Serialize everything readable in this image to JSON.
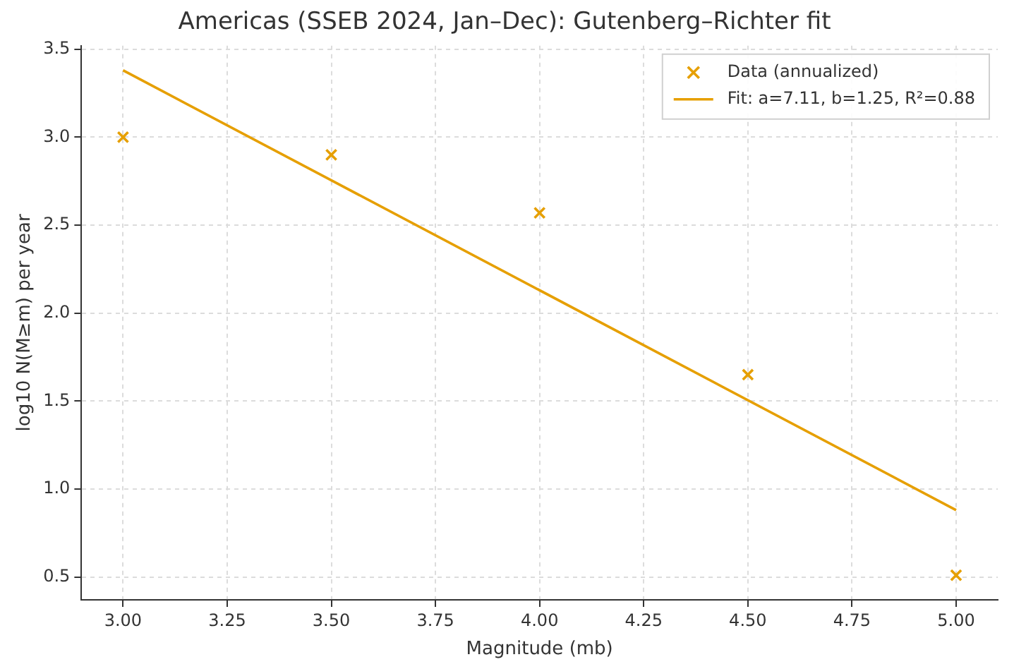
{
  "chart_data": {
    "type": "scatter",
    "title": "Americas (SSEB 2024, Jan–Dec): Gutenberg–Richter fit",
    "xlabel": "Magnitude (mb)",
    "ylabel": "log10 N(M≥m) per year",
    "x": [
      3.0,
      3.5,
      4.0,
      4.5,
      5.0
    ],
    "series": [
      {
        "name": "Data (annualized)",
        "color": "#e69f00",
        "marker": "cross",
        "values": [
          3.0,
          2.9,
          2.57,
          1.65,
          0.51
        ]
      },
      {
        "name": "Fit: a=7.11, b=1.25, R²=0.88",
        "color": "#e69f00",
        "type": "line",
        "marker": "none",
        "x": [
          3.0,
          5.0
        ],
        "values": [
          3.38,
          0.88
        ]
      }
    ],
    "xlim": [
      2.9,
      5.1
    ],
    "xticks": [
      {
        "value": 3.0,
        "label": "3.00"
      },
      3.25,
      {
        "value": 3.5,
        "label": "3.50"
      },
      3.75,
      {
        "value": 4.0,
        "label": "4.00"
      },
      4.25,
      {
        "value": 4.5,
        "label": "4.50"
      },
      4.75,
      {
        "value": 5.0,
        "label": "5.00"
      }
    ],
    "ylim": [
      0.37,
      3.52
    ],
    "yticks": [
      0.5,
      {
        "value": 1.0,
        "label": "1.0"
      },
      1.5,
      {
        "value": 2.0,
        "label": "2.0"
      },
      2.5,
      {
        "value": 3.0,
        "label": "3.0"
      },
      3.5
    ],
    "grid": true,
    "legend": "top right"
  }
}
